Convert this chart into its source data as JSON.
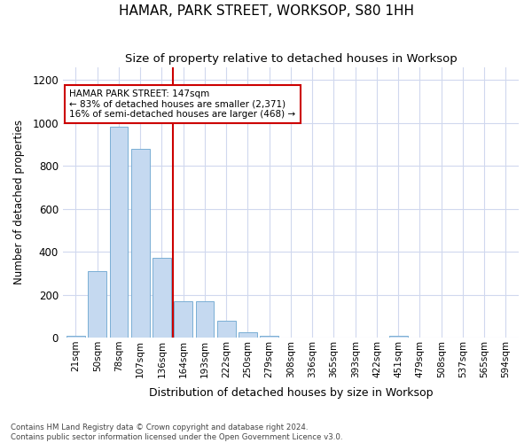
{
  "title": "HAMAR, PARK STREET, WORKSOP, S80 1HH",
  "subtitle": "Size of property relative to detached houses in Worksop",
  "xlabel": "Distribution of detached houses by size in Worksop",
  "ylabel": "Number of detached properties",
  "categories": [
    "21sqm",
    "50sqm",
    "78sqm",
    "107sqm",
    "136sqm",
    "164sqm",
    "193sqm",
    "222sqm",
    "250sqm",
    "279sqm",
    "308sqm",
    "336sqm",
    "365sqm",
    "393sqm",
    "422sqm",
    "451sqm",
    "479sqm",
    "508sqm",
    "537sqm",
    "565sqm",
    "594sqm"
  ],
  "values": [
    10,
    310,
    980,
    880,
    370,
    170,
    170,
    80,
    25,
    10,
    0,
    0,
    0,
    0,
    0,
    10,
    0,
    0,
    0,
    0,
    0
  ],
  "bar_color": "#c5d9f0",
  "bar_edgecolor": "#7aafd4",
  "property_line_x": 4.5,
  "property_label": "HAMAR PARK STREET: 147sqm",
  "annotation_line1": "← 83% of detached houses are smaller (2,371)",
  "annotation_line2": "16% of semi-detached houses are larger (468) →",
  "annotation_box_color": "#ffffff",
  "annotation_box_edgecolor": "#cc0000",
  "vline_color": "#cc0000",
  "ylim": [
    0,
    1260
  ],
  "yticks": [
    0,
    200,
    400,
    600,
    800,
    1000,
    1200
  ],
  "footer": "Contains HM Land Registry data © Crown copyright and database right 2024.\nContains public sector information licensed under the Open Government Licence v3.0.",
  "background_color": "#ffffff",
  "plot_background": "#ffffff",
  "grid_color": "#d0d8ee"
}
